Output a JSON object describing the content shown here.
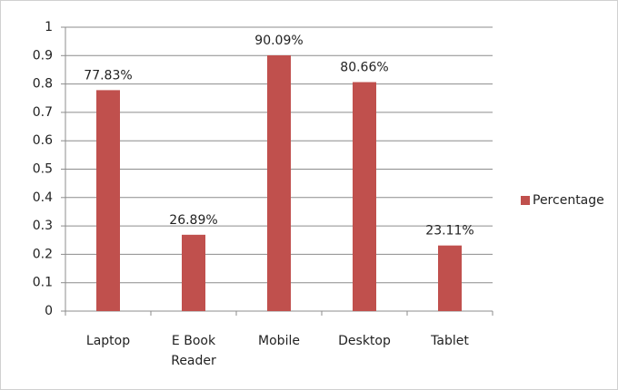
{
  "chart_data": {
    "type": "bar",
    "categories": [
      "Laptop",
      "E Book Reader",
      "Mobile",
      "Desktop",
      "Tablet"
    ],
    "series": [
      {
        "name": "Percentage",
        "color": "#c0504d",
        "values": [
          0.7783,
          0.2689,
          0.9009,
          0.8066,
          0.2311
        ],
        "value_labels": [
          "77.83%",
          "26.89%",
          "90.09%",
          "80.66%",
          "23.11%"
        ]
      }
    ],
    "ylim": [
      0,
      1
    ],
    "yticks": [
      0,
      0.1,
      0.2,
      0.3,
      0.4,
      0.5,
      0.6,
      0.7,
      0.8,
      0.9,
      1
    ],
    "grid": true,
    "legend": "right"
  }
}
